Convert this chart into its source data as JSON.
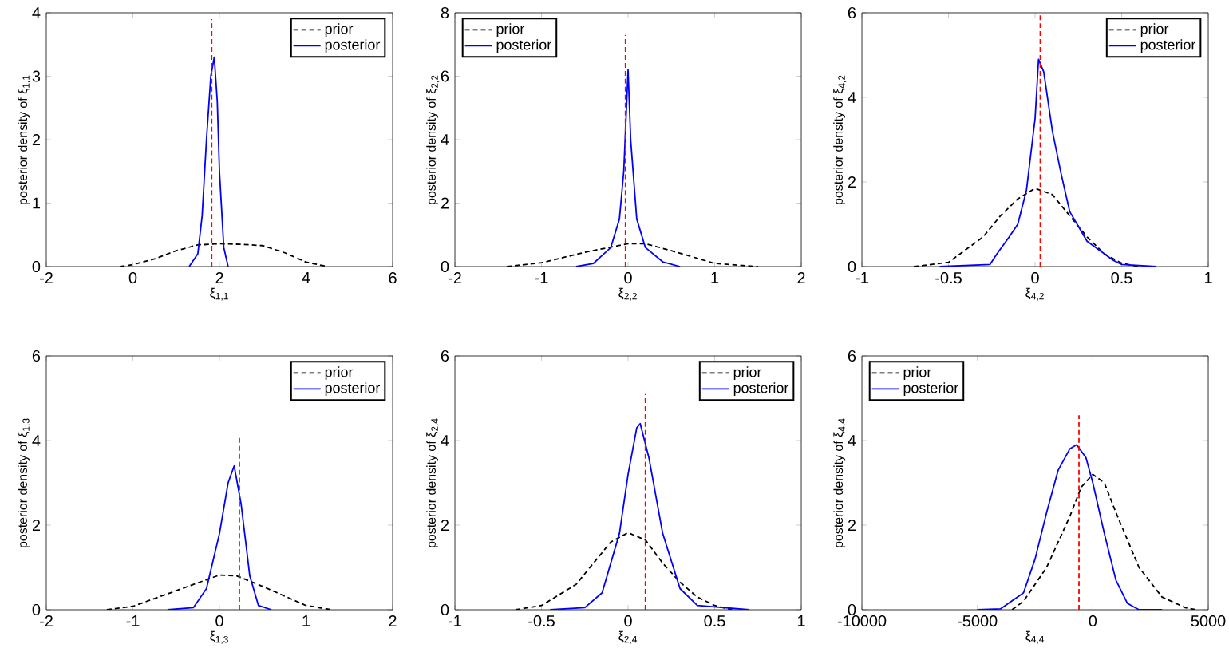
{
  "chart_data": [
    {
      "type": "line",
      "xlabel": "ξ$_{1,1}$",
      "ylabel": "posterior density of ξ$_{1,1}$",
      "xlim": [
        -2,
        6
      ],
      "ylim": [
        0,
        4
      ],
      "xticks": [
        -2,
        0,
        2,
        4,
        6
      ],
      "yticks": [
        0,
        1,
        2,
        3,
        4
      ],
      "legend": "top right",
      "grid": false,
      "series": [
        {
          "name": "prior",
          "color": "#000000",
          "line_style": "dashed",
          "x": [
            -0.3,
            0,
            0.5,
            1,
            1.5,
            2,
            2.5,
            3,
            3.5,
            4,
            4.5
          ],
          "values": [
            0,
            0.03,
            0.12,
            0.25,
            0.34,
            0.36,
            0.35,
            0.33,
            0.22,
            0.07,
            0
          ]
        },
        {
          "name": "posterior",
          "color": "#0000ff",
          "line_style": "solid",
          "x": [
            1.3,
            1.5,
            1.6,
            1.7,
            1.8,
            1.88,
            1.95,
            2.0,
            2.1,
            2.2
          ],
          "values": [
            0,
            0.2,
            0.8,
            2.0,
            3.0,
            3.3,
            2.6,
            1.5,
            0.3,
            0
          ]
        },
        {
          "color": "#ff0000",
          "line_style": "dashed",
          "x": [
            1.82,
            1.82
          ],
          "values": [
            0,
            3.9
          ]
        }
      ]
    },
    {
      "type": "line",
      "xlabel": "ξ$_{2,2}$",
      "ylabel": "posterior density of ξ$_{2,2}$",
      "xlim": [
        -2,
        2
      ],
      "ylim": [
        0,
        8
      ],
      "xticks": [
        -2,
        -1,
        0,
        1,
        2
      ],
      "yticks": [
        0,
        2,
        4,
        6,
        8
      ],
      "legend": "top left",
      "grid": false,
      "series": [
        {
          "name": "prior",
          "color": "#000000",
          "line_style": "dashed",
          "x": [
            -1.4,
            -1,
            -0.5,
            0,
            0.2,
            0.5,
            1,
            1.5
          ],
          "values": [
            0,
            0.12,
            0.45,
            0.72,
            0.72,
            0.5,
            0.1,
            0
          ]
        },
        {
          "name": "posterior",
          "color": "#0000ff",
          "line_style": "solid",
          "x": [
            -0.6,
            -0.4,
            -0.2,
            -0.1,
            -0.05,
            0,
            0.03,
            0.1,
            0.2,
            0.4,
            0.6
          ],
          "values": [
            0,
            0.1,
            0.6,
            1.5,
            3,
            6.2,
            4,
            1.5,
            0.6,
            0.15,
            0
          ]
        },
        {
          "color": "#ff0000",
          "line_style": "dashed",
          "x": [
            -0.03,
            -0.03
          ],
          "values": [
            0,
            7.3
          ]
        }
      ]
    },
    {
      "type": "line",
      "xlabel": "ξ$_{4,2}$",
      "ylabel": "posterior density of ξ$_{4,2}$",
      "xlim": [
        -1,
        1
      ],
      "ylim": [
        0,
        6
      ],
      "xticks": [
        -1,
        -0.5,
        0,
        0.5,
        1
      ],
      "yticks": [
        0,
        2,
        4,
        6
      ],
      "legend": "top right",
      "grid": false,
      "series": [
        {
          "name": "prior",
          "color": "#000000",
          "line_style": "dashed",
          "x": [
            -0.7,
            -0.5,
            -0.3,
            -0.2,
            -0.1,
            0,
            0.1,
            0.2,
            0.3,
            0.4,
            0.5,
            0.6
          ],
          "values": [
            0,
            0.1,
            0.7,
            1.2,
            1.6,
            1.85,
            1.7,
            1.2,
            0.7,
            0.3,
            0.08,
            0
          ]
        },
        {
          "name": "posterior",
          "color": "#0000ff",
          "line_style": "solid",
          "x": [
            -0.55,
            -0.26,
            -0.22,
            -0.15,
            -0.1,
            -0.05,
            0,
            0.02,
            0.05,
            0.1,
            0.15,
            0.2,
            0.3,
            0.4,
            0.45,
            0.5,
            0.7
          ],
          "values": [
            0,
            0.05,
            0.3,
            0.7,
            1.0,
            1.8,
            3.5,
            4.9,
            4.6,
            3.2,
            2.2,
            1.3,
            0.6,
            0.3,
            0.15,
            0.05,
            0
          ]
        },
        {
          "color": "#ff0000",
          "line_style": "dashed",
          "x": [
            0.03,
            0.03
          ],
          "values": [
            0,
            6
          ]
        }
      ]
    },
    {
      "type": "line",
      "xlabel": "ξ$_{1,3}$",
      "ylabel": "posterior density of ξ$_{1,3}$",
      "xlim": [
        -2,
        2
      ],
      "ylim": [
        0,
        6
      ],
      "xticks": [
        -2,
        -1,
        0,
        1,
        2
      ],
      "yticks": [
        0,
        2,
        4,
        6
      ],
      "legend": "top right",
      "grid": false,
      "series": [
        {
          "name": "prior",
          "color": "#000000",
          "line_style": "dashed",
          "x": [
            -1.3,
            -1,
            -0.5,
            0,
            0.2,
            0.5,
            1,
            1.3
          ],
          "values": [
            0,
            0.08,
            0.45,
            0.82,
            0.8,
            0.55,
            0.1,
            0
          ]
        },
        {
          "name": "posterior",
          "color": "#0000ff",
          "line_style": "solid",
          "x": [
            -0.6,
            -0.3,
            -0.15,
            0,
            0.1,
            0.17,
            0.25,
            0.35,
            0.45,
            0.6
          ],
          "values": [
            0,
            0.05,
            0.5,
            1.8,
            3.0,
            3.4,
            2.5,
            0.8,
            0.1,
            0
          ]
        },
        {
          "color": "#ff0000",
          "line_style": "dashed",
          "x": [
            0.23,
            0.23
          ],
          "values": [
            0,
            4.1
          ]
        }
      ]
    },
    {
      "type": "line",
      "xlabel": "ξ$_{2,4}$",
      "ylabel": "posterior density of ξ$_{2,4}$",
      "xlim": [
        -1,
        1
      ],
      "ylim": [
        0,
        6
      ],
      "xticks": [
        -1,
        -0.5,
        0,
        0.5,
        1
      ],
      "yticks": [
        0,
        2,
        4,
        6
      ],
      "legend": "top right",
      "grid": false,
      "series": [
        {
          "name": "prior",
          "color": "#000000",
          "line_style": "dashed",
          "x": [
            -0.65,
            -0.5,
            -0.3,
            -0.2,
            -0.1,
            0,
            0.1,
            0.2,
            0.3,
            0.4,
            0.5,
            0.6
          ],
          "values": [
            0,
            0.1,
            0.6,
            1.1,
            1.6,
            1.82,
            1.65,
            1.1,
            0.65,
            0.3,
            0.1,
            0
          ]
        },
        {
          "name": "posterior",
          "color": "#0000ff",
          "line_style": "solid",
          "x": [
            -0.45,
            -0.25,
            -0.15,
            -0.05,
            0,
            0.05,
            0.07,
            0.12,
            0.2,
            0.3,
            0.4,
            0.7
          ],
          "values": [
            0,
            0.05,
            0.4,
            1.8,
            3.2,
            4.3,
            4.4,
            3.6,
            1.8,
            0.5,
            0.1,
            0
          ]
        },
        {
          "color": "#ff0000",
          "line_style": "dashed",
          "x": [
            0.1,
            0.1
          ],
          "values": [
            0,
            5.1
          ]
        }
      ]
    },
    {
      "type": "line",
      "xlabel": "ξ$_{4,4}$",
      "ylabel": "posterior density of ξ$_{4,4}$",
      "xlim": [
        -10000,
        5000
      ],
      "ylim": [
        0,
        6
      ],
      "xticks": [
        -10000,
        -5000,
        0,
        5000
      ],
      "yticks": [
        0,
        2,
        4,
        6
      ],
      "legend": "top left",
      "grid": false,
      "series": [
        {
          "name": "prior",
          "color": "#000000",
          "line_style": "dashed",
          "x": [
            -3500,
            -3000,
            -2000,
            -1000,
            -500,
            0,
            500,
            1000,
            2000,
            3000,
            4000,
            4500
          ],
          "values": [
            0,
            0.2,
            1.0,
            2.2,
            2.9,
            3.2,
            3.0,
            2.3,
            1.0,
            0.3,
            0.05,
            0
          ]
        },
        {
          "name": "posterior",
          "color": "#0000ff",
          "line_style": "solid",
          "x": [
            -5000,
            -4000,
            -3000,
            -2500,
            -2000,
            -1500,
            -1000,
            -700,
            -300,
            0,
            500,
            1000,
            1500,
            2000,
            3000
          ],
          "values": [
            0,
            0.02,
            0.4,
            1.2,
            2.3,
            3.3,
            3.8,
            3.9,
            3.6,
            3.0,
            1.8,
            0.7,
            0.15,
            0,
            0
          ]
        },
        {
          "color": "#ff0000",
          "line_style": "dashed",
          "x": [
            -600,
            -600
          ],
          "values": [
            0,
            4.6
          ]
        }
      ]
    }
  ]
}
